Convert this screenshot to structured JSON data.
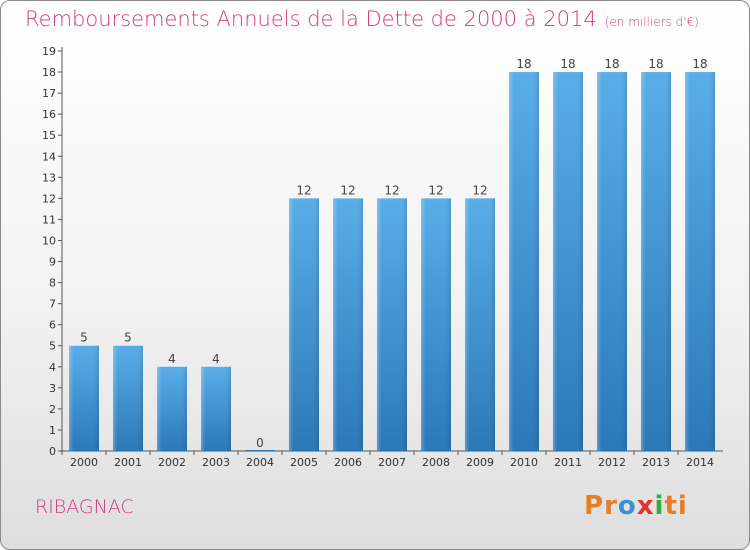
{
  "header": {
    "title": "Remboursements Annuels de la Dette de 2000 à 2014",
    "unit": "(en milliers d'€)"
  },
  "footer": {
    "commune": "RIBAGNAC",
    "logo": "Proxiti"
  },
  "colors": {
    "title": "#d4397f",
    "bar_top": "#5aaee8",
    "bar_bottom": "#2a78b8"
  },
  "chart_data": {
    "type": "bar",
    "title": "Remboursements Annuels de la Dette de 2000 à 2014",
    "xlabel": "",
    "ylabel": "",
    "categories": [
      "2000",
      "2001",
      "2002",
      "2003",
      "2004",
      "2005",
      "2006",
      "2007",
      "2008",
      "2009",
      "2010",
      "2011",
      "2012",
      "2013",
      "2014"
    ],
    "values": [
      5,
      5,
      4,
      4,
      0,
      12,
      12,
      12,
      12,
      12,
      18,
      18,
      18,
      18,
      18
    ],
    "ylim": [
      0,
      19
    ],
    "yticks": [
      0,
      1,
      2,
      3,
      4,
      5,
      6,
      7,
      8,
      9,
      10,
      11,
      12,
      13,
      14,
      15,
      16,
      17,
      18,
      19
    ],
    "grid": false,
    "legend": "none"
  }
}
